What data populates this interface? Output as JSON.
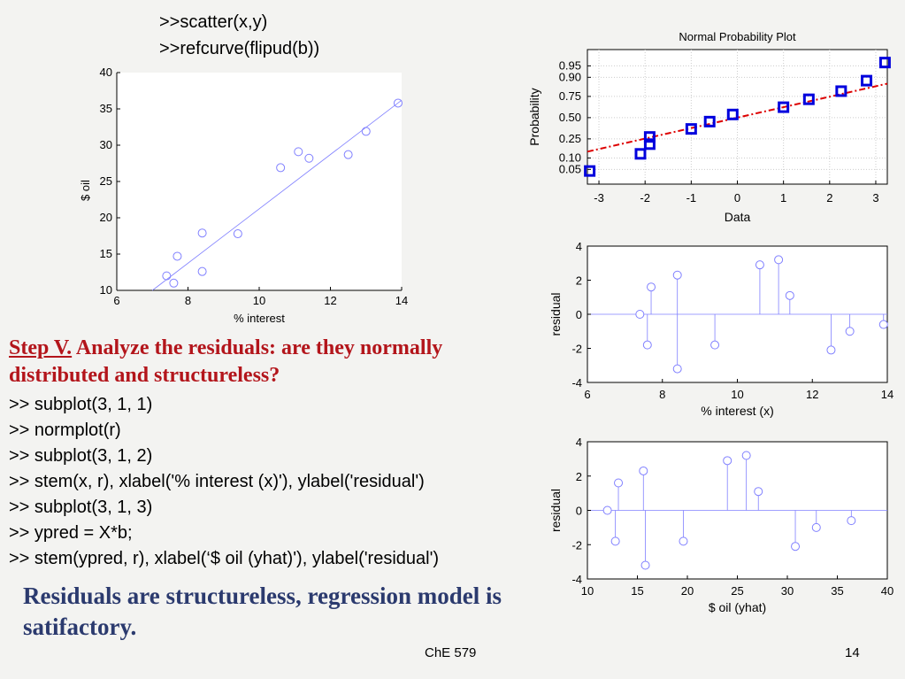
{
  "code_top": [
    ">>scatter(x,y)",
    ">>refcurve(flipud(b))"
  ],
  "step": {
    "label": "Step V.",
    "text": " Analyze the residuals: are they normally distributed and structureless?"
  },
  "code_lines": [
    ">> subplot(3, 1, 1)",
    ">> normplot(r)",
    ">> subplot(3, 1, 2)",
    ">> stem(x, r), xlabel('% interest (x)'), ylabel('residual')",
    ">> subplot(3, 1, 3)",
    ">> ypred = X*b;",
    ">> stem(ypred, r), xlabel(‘$ oil (yhat)'), ylabel('residual')"
  ],
  "conclusion": "Residuals are structureless, regression model is satifactory.",
  "footer": {
    "course": "ChE 579",
    "page": "14"
  },
  "colors": {
    "step": "#b3151b",
    "conclusion": "#2b3a6e",
    "marker": "#8080ff",
    "normmarker": "#0000dd",
    "refline": "#dd0000"
  },
  "chart_data": [
    {
      "type": "scatter",
      "title": "",
      "xlabel": "% interest",
      "ylabel": "$ oil",
      "xlim": [
        6,
        14
      ],
      "ylim": [
        10,
        40
      ],
      "xticks": [
        "6",
        "8",
        "10",
        "12",
        "14"
      ],
      "yticks": [
        "10",
        "15",
        "20",
        "25",
        "30",
        "35",
        "40"
      ],
      "x": [
        7.4,
        7.6,
        7.7,
        8.4,
        8.4,
        9.4,
        10.6,
        11.1,
        11.4,
        12.5,
        13.0,
        13.9
      ],
      "y": [
        12.0,
        11.0,
        14.7,
        17.9,
        12.6,
        17.8,
        26.9,
        29.1,
        28.2,
        28.7,
        31.9,
        35.8
      ],
      "refline": {
        "x": [
          7.0,
          14.0
        ],
        "y": [
          10.0,
          36.2
        ]
      }
    },
    {
      "type": "scatter",
      "title": "Normal Probability Plot",
      "xlabel": "Data",
      "ylabel": "Probability",
      "xlim": [
        -3.25,
        3.25
      ],
      "xticks": [
        "-3",
        "-2",
        "-1",
        "0",
        "1",
        "2",
        "3"
      ],
      "yticks": [
        "0.05",
        "0.10",
        "0.25",
        "0.50",
        "0.75",
        "0.90",
        "0.95"
      ],
      "x": [
        -3.2,
        -2.1,
        -1.9,
        -1.9,
        -1.0,
        -0.6,
        -0.1,
        1.0,
        1.55,
        2.25,
        2.8,
        3.2
      ],
      "p": [
        0.045,
        0.125,
        0.2,
        0.27,
        0.36,
        0.45,
        0.54,
        0.63,
        0.72,
        0.8,
        0.88,
        0.96
      ],
      "refline": {
        "x": [
          -3.25,
          3.25
        ],
        "p": [
          0.14,
          0.86
        ]
      }
    },
    {
      "type": "stem",
      "xlabel": "% interest (x)",
      "ylabel": "residual",
      "xlim": [
        6,
        14
      ],
      "ylim": [
        -4,
        4
      ],
      "xticks": [
        "6",
        "8",
        "10",
        "12",
        "14"
      ],
      "yticks": [
        "-4",
        "-2",
        "0",
        "2",
        "4"
      ],
      "x": [
        7.4,
        7.6,
        7.7,
        8.4,
        8.4,
        9.4,
        10.6,
        11.1,
        11.4,
        12.5,
        13.0,
        13.9
      ],
      "y": [
        0.0,
        -1.8,
        1.6,
        2.3,
        -3.2,
        -1.8,
        2.9,
        3.2,
        1.1,
        -2.1,
        -1.0,
        -0.6
      ]
    },
    {
      "type": "stem",
      "xlabel": "$ oil (yhat)",
      "ylabel": "residual",
      "xlim": [
        10,
        40
      ],
      "ylim": [
        -4,
        4
      ],
      "xticks": [
        "10",
        "15",
        "20",
        "25",
        "30",
        "35",
        "40"
      ],
      "yticks": [
        "-4",
        "-2",
        "0",
        "2",
        "4"
      ],
      "x": [
        12.0,
        12.8,
        13.1,
        15.6,
        15.8,
        19.6,
        24.0,
        25.9,
        27.1,
        30.8,
        32.9,
        36.4
      ],
      "y": [
        0.0,
        -1.8,
        1.6,
        2.3,
        -3.2,
        -1.8,
        2.9,
        3.2,
        1.1,
        -2.1,
        -1.0,
        -0.6
      ]
    }
  ]
}
